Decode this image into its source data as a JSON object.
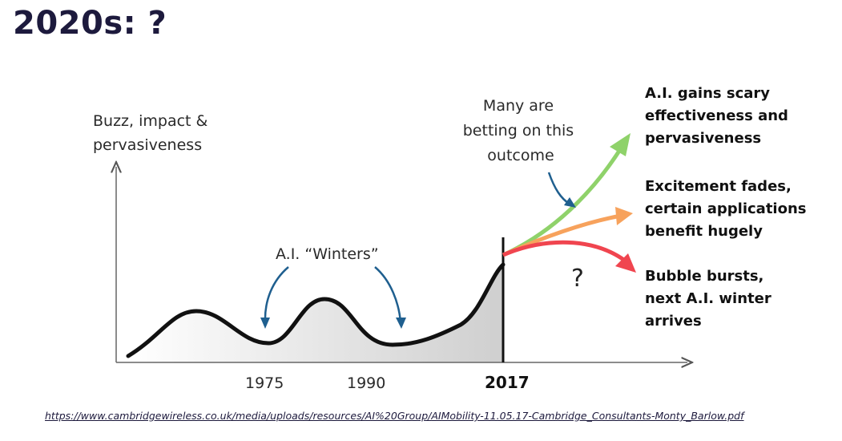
{
  "slide": {
    "title": "2020s: ?",
    "source_url": "https://www.cambridgewireless.co.uk/media/uploads/resources/AI%20Group/AIMobility-11.05.17-Cambridge_Consultants-Monty_Barlow.pdf"
  },
  "diagram": {
    "y_axis_label": [
      "Buzz, impact &",
      "pervasiveness"
    ],
    "winters_label": "A.I. “Winters”",
    "betting_label": [
      "Many are",
      "betting on this",
      "outcome"
    ],
    "question_mark": "?",
    "years": {
      "y1975": "1975",
      "y1990": "1990",
      "y2017": "2017"
    },
    "outcomes": {
      "gains": [
        "A.I. gains scary",
        "effectiveness and",
        "pervasiveness"
      ],
      "fades": [
        "Excitement fades,",
        "certain applications",
        "benefit hugely"
      ],
      "bursts": [
        "Bubble bursts,",
        "next A.I. winter",
        "arrives"
      ]
    },
    "colors": {
      "curve": "#111111",
      "gains_arrow": "#8fd26a",
      "fades_arrow": "#f7a25c",
      "bursts_arrow": "#f0454f",
      "pointer_arrow": "#1f5f8f",
      "shade": "#d9d9d9"
    }
  }
}
